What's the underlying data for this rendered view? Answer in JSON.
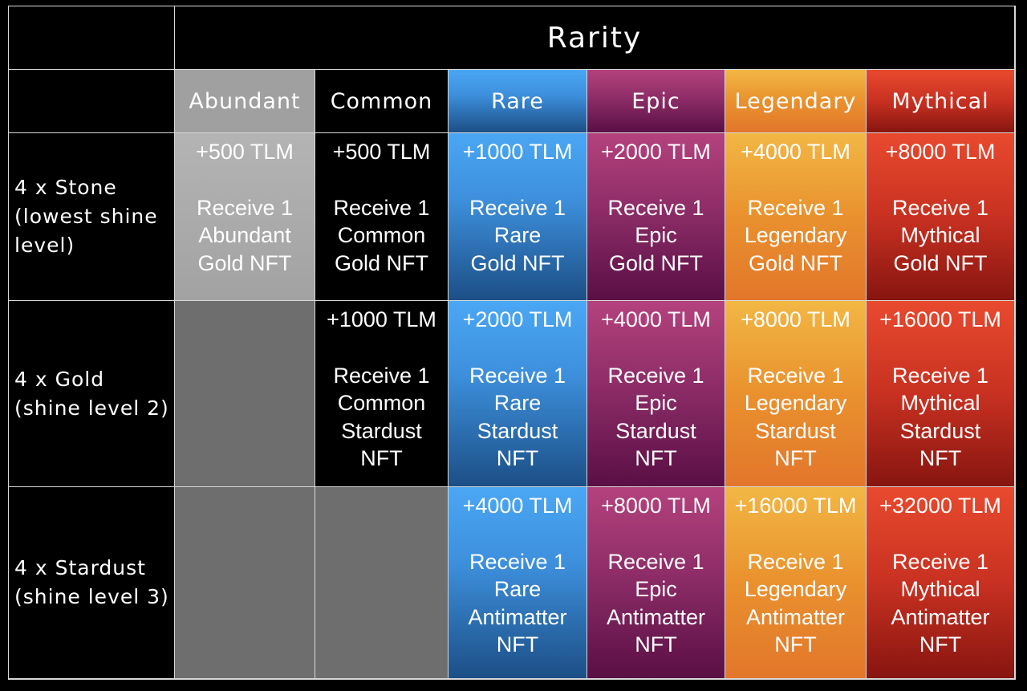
{
  "title": "Rarity",
  "columns": [
    "Abundant",
    "Common",
    "Rare",
    "Epic",
    "Legendary",
    "Mythical"
  ],
  "rows": [
    {
      "label_lines": [
        "4 x Stone",
        "(lowest shine",
        "level)"
      ],
      "cells": [
        {
          "tlm": "+500 TLM",
          "lines": [
            "Receive 1",
            "Abundant",
            "Gold NFT"
          ]
        },
        {
          "tlm": "+500 TLM",
          "lines": [
            "Receive 1",
            "Common",
            "Gold NFT"
          ]
        },
        {
          "tlm": "+1000 TLM",
          "lines": [
            "Receive 1",
            "Rare",
            "Gold NFT"
          ]
        },
        {
          "tlm": "+2000 TLM",
          "lines": [
            "Receive 1",
            "Epic",
            "Gold NFT"
          ]
        },
        {
          "tlm": "+4000 TLM",
          "lines": [
            "Receive 1",
            "Legendary",
            "Gold NFT"
          ]
        },
        {
          "tlm": "+8000 TLM",
          "lines": [
            "Receive 1",
            "Mythical",
            "Gold NFT"
          ]
        }
      ]
    },
    {
      "label_lines": [
        "4 x Gold",
        "(shine level 2)"
      ],
      "cells": [
        null,
        {
          "tlm": "+1000 TLM",
          "lines": [
            "Receive 1",
            "Common",
            "Stardust",
            "NFT"
          ]
        },
        {
          "tlm": "+2000 TLM",
          "lines": [
            "Receive 1",
            "Rare",
            "Stardust",
            "NFT"
          ]
        },
        {
          "tlm": "+4000 TLM",
          "lines": [
            "Receive 1",
            "Epic",
            "Stardust",
            "NFT"
          ]
        },
        {
          "tlm": "+8000 TLM",
          "lines": [
            "Receive 1",
            "Legendary",
            "Stardust",
            "NFT"
          ]
        },
        {
          "tlm": "+16000 TLM",
          "lines": [
            "Receive 1",
            "Mythical",
            "Stardust",
            "NFT"
          ]
        }
      ]
    },
    {
      "label_lines": [
        "4 x Stardust",
        "(shine level 3)"
      ],
      "cells": [
        null,
        null,
        {
          "tlm": "+4000 TLM",
          "lines": [
            "Receive 1",
            "Rare",
            "Antimatter",
            "NFT"
          ]
        },
        {
          "tlm": "+8000 TLM",
          "lines": [
            "Receive 1",
            "Epic",
            "Antimatter",
            "NFT"
          ]
        },
        {
          "tlm": "+16000 TLM",
          "lines": [
            "Receive 1",
            "Legendary",
            "Antimatter",
            "NFT"
          ]
        },
        {
          "tlm": "+32000 TLM",
          "lines": [
            "Receive 1",
            "Mythical",
            "Antimatter",
            "NFT"
          ]
        }
      ]
    }
  ],
  "colors": {
    "abundant": "#a8a8a8",
    "common": "#000000",
    "rare": "#3d8fdc",
    "epic": "#8e2d68",
    "legendary": "#e9912e",
    "mythical": "#c83121",
    "empty": "#6e6e6e"
  }
}
